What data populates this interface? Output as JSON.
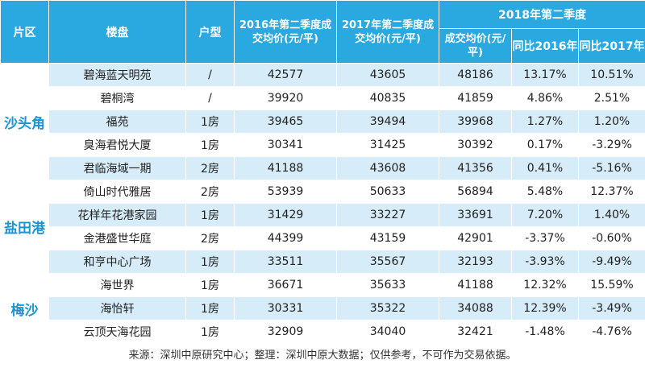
{
  "headers": {
    "district": "片区",
    "project": "楼盘",
    "unit_type": "户型",
    "q2_2016": "2016年第二季度成交均价(元/平)",
    "q2_2017": "2017年第二季度成交均价(元/平)",
    "q2_2018": "2018年第二季度",
    "q2_2018_price": "成交均价(元/平)",
    "yoy_2016": "同比2016年",
    "yoy_2017": "同比2017年"
  },
  "districts": [
    {
      "name": "沙头角",
      "rows": [
        {
          "project": "碧海蓝天明苑",
          "unit_type": "/",
          "p2016": "42577",
          "p2017": "43605",
          "p2018": "48186",
          "yoy2016": "13.17%",
          "yoy2017": "10.51%"
        },
        {
          "project": "碧桐湾",
          "unit_type": "/",
          "p2016": "39920",
          "p2017": "40835",
          "p2018": "41859",
          "yoy2016": "4.86%",
          "yoy2017": "2.51%"
        },
        {
          "project": "福苑",
          "unit_type": "1房",
          "p2016": "39465",
          "p2017": "39494",
          "p2018": "39968",
          "yoy2016": "1.27%",
          "yoy2017": "1.20%"
        },
        {
          "project": "臭海君悦大厦",
          "unit_type": "1房",
          "p2016": "30341",
          "p2017": "31425",
          "p2018": "30392",
          "yoy2016": "0.17%",
          "yoy2017": "-3.29%"
        },
        {
          "project": "君临海域一期",
          "unit_type": "2房",
          "p2016": "41188",
          "p2017": "43608",
          "p2018": "41356",
          "yoy2016": "0.41%",
          "yoy2017": "-5.16%"
        }
      ]
    },
    {
      "name": "盐田港",
      "rows": [
        {
          "project": "倚山时代雅居",
          "unit_type": "2房",
          "p2016": "53939",
          "p2017": "50633",
          "p2018": "56894",
          "yoy2016": "5.48%",
          "yoy2017": "12.37%"
        },
        {
          "project": "花样年花港家园",
          "unit_type": "1房",
          "p2016": "31429",
          "p2017": "33227",
          "p2018": "33691",
          "yoy2016": "7.20%",
          "yoy2017": "1.40%"
        },
        {
          "project": "金港盛世华庭",
          "unit_type": "2房",
          "p2016": "44399",
          "p2017": "43159",
          "p2018": "42901",
          "yoy2016": "-3.37%",
          "yoy2017": "-0.60%"
        },
        {
          "project": "和亨中心广场",
          "unit_type": "1房",
          "p2016": "33511",
          "p2017": "35567",
          "p2018": "32193",
          "yoy2016": "-3.93%",
          "yoy2017": "-9.49%"
        }
      ]
    },
    {
      "name": "梅沙",
      "rows": [
        {
          "project": "海世界",
          "unit_type": "1房",
          "p2016": "36671",
          "p2017": "35633",
          "p2018": "41188",
          "yoy2016": "12.32%",
          "yoy2017": "15.59%"
        },
        {
          "project": "海怡轩",
          "unit_type": "1房",
          "p2016": "30331",
          "p2017": "35322",
          "p2018": "34088",
          "yoy2016": "12.39%",
          "yoy2017": "-3.49%"
        },
        {
          "project": "云顶天海花园",
          "unit_type": "1房",
          "p2016": "32909",
          "p2017": "34040",
          "p2018": "32421",
          "yoy2016": "-1.48%",
          "yoy2017": "-4.76%"
        }
      ]
    }
  ],
  "footer": {
    "source": "来源：深圳中原研究中心；整理：深圳中原大数据；仅供参考，不可作为交易依据。"
  }
}
